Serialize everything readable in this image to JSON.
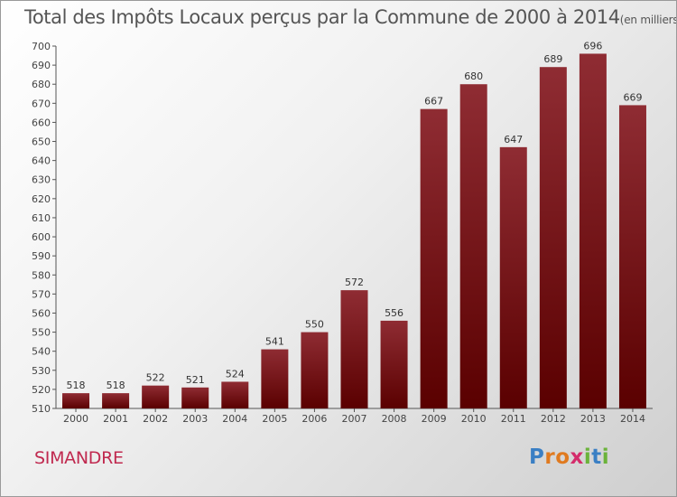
{
  "chart_data": {
    "type": "bar",
    "title": "Total des Impôts Locaux perçus par la Commune de 2000 à 2014",
    "unit_note": "(en milliers d'€)",
    "categories": [
      "2000",
      "2001",
      "2002",
      "2003",
      "2004",
      "2005",
      "2006",
      "2007",
      "2008",
      "2009",
      "2010",
      "2011",
      "2012",
      "2013",
      "2014"
    ],
    "values": [
      518,
      518,
      522,
      521,
      524,
      541,
      550,
      572,
      556,
      667,
      680,
      647,
      689,
      696,
      669
    ],
    "ylim": [
      510,
      700
    ],
    "ytick_step": 10,
    "grid": false,
    "data_labels": true,
    "bar_color": "#7a1418"
  },
  "commune": "SIMANDRE",
  "logo": {
    "letters": [
      "P",
      "r",
      "o",
      "x",
      "i",
      "t",
      "i"
    ],
    "colors": [
      "#3a7fc4",
      "#e07a1f",
      "#e07a1f",
      "#d42c6b",
      "#6bb33a",
      "#3a7fc4",
      "#6bb33a"
    ]
  }
}
